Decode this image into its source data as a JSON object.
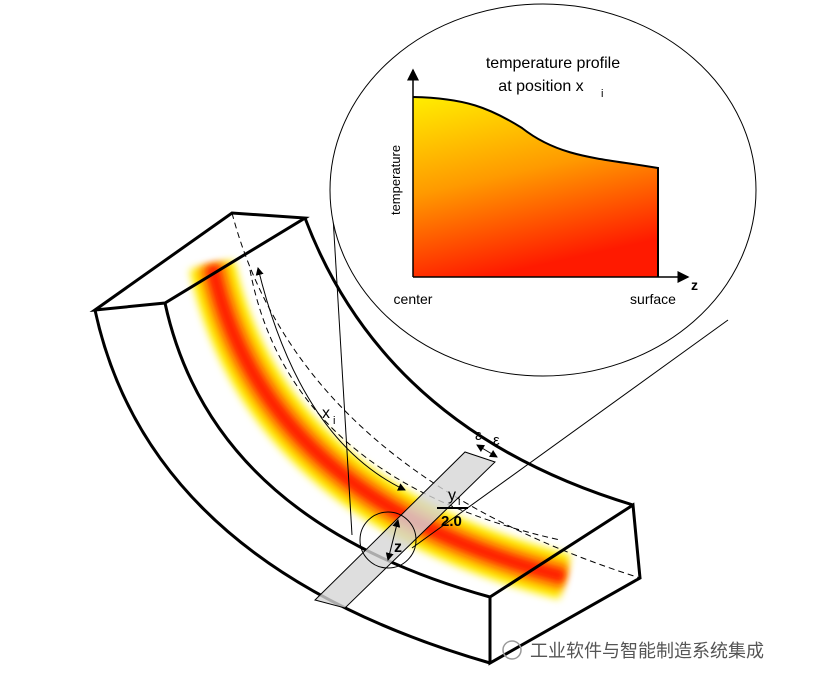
{
  "inset": {
    "title_line1": "temperature profile",
    "title_line2": "at position x",
    "title_sub": "i",
    "y_label": "temperature",
    "x_label_left": "center",
    "x_label_right": "surface",
    "axis_z": "z"
  },
  "beam": {
    "arc_label": "x",
    "arc_sub": "i",
    "epsilon_left": "ε",
    "epsilon_right": "ε",
    "y_label": "y",
    "y_sub": "i",
    "fraction_denominator": "2.0",
    "z_label": "z"
  },
  "watermark": "工业软件与智能制造系统集成"
}
